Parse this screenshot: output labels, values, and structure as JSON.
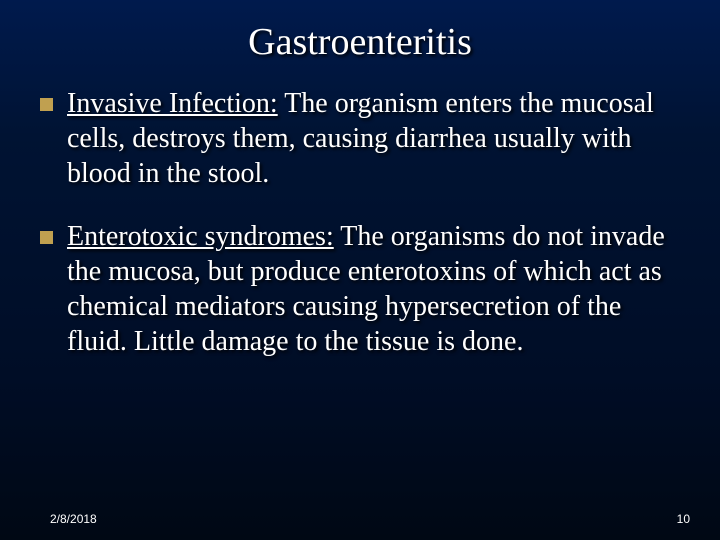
{
  "slide": {
    "title": "Gastroenteritis",
    "background_gradient_top": "#001a4d",
    "background_gradient_bottom": "#000814",
    "title_color": "#ffffff",
    "title_fontsize": 38,
    "body_color": "#ffffff",
    "body_fontsize": 28,
    "bullet_color": "#c0a050",
    "bullet_shape": "square",
    "bullet_size": 13,
    "shadow_color": "#000000",
    "bullets": [
      {
        "heading": "Invasive Infection:",
        "body": " The organism enters the mucosal cells, destroys them, causing diarrhea usually with blood in the stool."
      },
      {
        "heading": "Enterotoxic syndromes:",
        "body": " The organisms do not invade the mucosa, but produce enterotoxins of which act as chemical mediators causing hypersecretion of the fluid.  Little damage to the tissue is done."
      }
    ],
    "footer": {
      "date": "2/8/2018",
      "page": "10",
      "fontsize": 12,
      "color": "#ffffff"
    }
  }
}
